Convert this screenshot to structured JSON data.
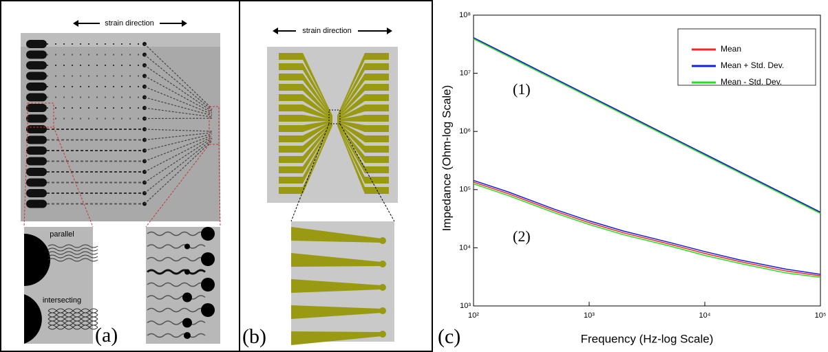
{
  "panels": {
    "a": {
      "label": "(a)",
      "strain": "strain direction",
      "inset_top": "parallel",
      "inset_bottom": "intersecting"
    },
    "b": {
      "label": "(b)",
      "strain": "strain direction"
    },
    "c": {
      "label": "(c)"
    }
  },
  "chart_data": {
    "type": "line",
    "x_label": "Frequency (Hz-log Scale)",
    "y_label": "Impedance (Ohm-log Scale)",
    "annotations": [
      "(1)",
      "(2)"
    ],
    "x": [
      100,
      200,
      500,
      1000,
      2000,
      5000,
      10000,
      20000,
      50000,
      100000
    ],
    "series": [
      {
        "name": "Mean",
        "color": "#ff2020",
        "values": [
          40000000,
          20000000,
          8000000,
          4000000,
          2000000,
          800000,
          400000,
          200000,
          80000,
          40000
        ],
        "values2": [
          135000,
          85000,
          43000,
          27000,
          18000,
          11500,
          8000,
          5800,
          4000,
          3300
        ]
      },
      {
        "name": "Mean + Std. Dev.",
        "color": "#1020e0",
        "values": [
          41000000,
          20500000,
          8200000,
          4100000,
          2050000,
          820000,
          410000,
          205000,
          82000,
          41000
        ],
        "values2": [
          144000,
          91000,
          46000,
          29000,
          19300,
          12300,
          8600,
          6200,
          4300,
          3500
        ]
      },
      {
        "name": "Mean - Std. Dev.",
        "color": "#20e020",
        "values": [
          39000000,
          19500000,
          7800000,
          3900000,
          1950000,
          780000,
          390000,
          195000,
          78000,
          39000
        ],
        "values2": [
          126000,
          79000,
          40000,
          25100,
          16700,
          10700,
          7400,
          5400,
          3700,
          3100
        ]
      }
    ],
    "xlim": [
      100,
      100000
    ],
    "ylim": [
      1000,
      100000000
    ],
    "xlog": true,
    "ylog": true,
    "xticks": [
      {
        "value": 100,
        "label": "10²"
      },
      {
        "value": 1000,
        "label": "10³"
      },
      {
        "value": 10000,
        "label": "10⁴"
      },
      {
        "value": 100000,
        "label": "10⁵"
      }
    ],
    "yticks": [
      {
        "value": 1000,
        "label": "10³"
      },
      {
        "value": 10000,
        "label": "10⁴"
      },
      {
        "value": 100000,
        "label": "10⁵"
      },
      {
        "value": 1000000,
        "label": "10⁶"
      },
      {
        "value": 10000000,
        "label": "10⁷"
      },
      {
        "value": 100000000,
        "label": "10⁸"
      }
    ],
    "legend": "upper-right"
  }
}
